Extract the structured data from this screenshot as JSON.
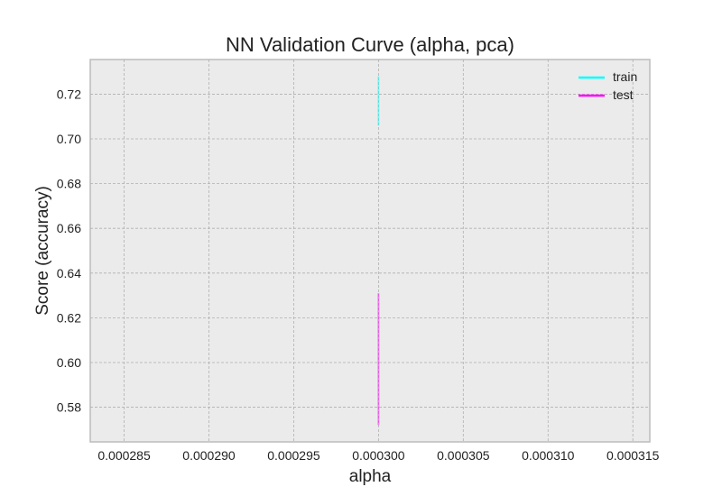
{
  "chart_data": {
    "type": "line",
    "title": "NN Validation Curve (alpha, pca)",
    "xlabel": "alpha",
    "ylabel": "Score (accuracy)",
    "xlim": [
      0.000283,
      0.000316
    ],
    "ylim": [
      0.5645,
      0.7355
    ],
    "x_ticks": [
      "0.000285",
      "0.000290",
      "0.000295",
      "0.000300",
      "0.000305",
      "0.000310",
      "0.000315"
    ],
    "x_tick_values": [
      0.000285,
      0.00029,
      0.000295,
      0.0003,
      0.000305,
      0.00031,
      0.000315
    ],
    "y_ticks": [
      "0.58",
      "0.60",
      "0.62",
      "0.64",
      "0.66",
      "0.68",
      "0.70",
      "0.72"
    ],
    "y_tick_values": [
      0.58,
      0.6,
      0.62,
      0.64,
      0.66,
      0.68,
      0.7,
      0.72
    ],
    "grid": true,
    "legend_position": "top-right",
    "background": "#ebebeb",
    "series": [
      {
        "name": "train",
        "color": "#00ffff",
        "x": [
          0.0003
        ],
        "y": [
          0.717
        ],
        "band": [
          0.706,
          0.728
        ]
      },
      {
        "name": "test",
        "color": "#ff00ff",
        "x": [
          0.0003
        ],
        "y": [
          0.601
        ],
        "band": [
          0.572,
          0.631
        ]
      }
    ]
  }
}
